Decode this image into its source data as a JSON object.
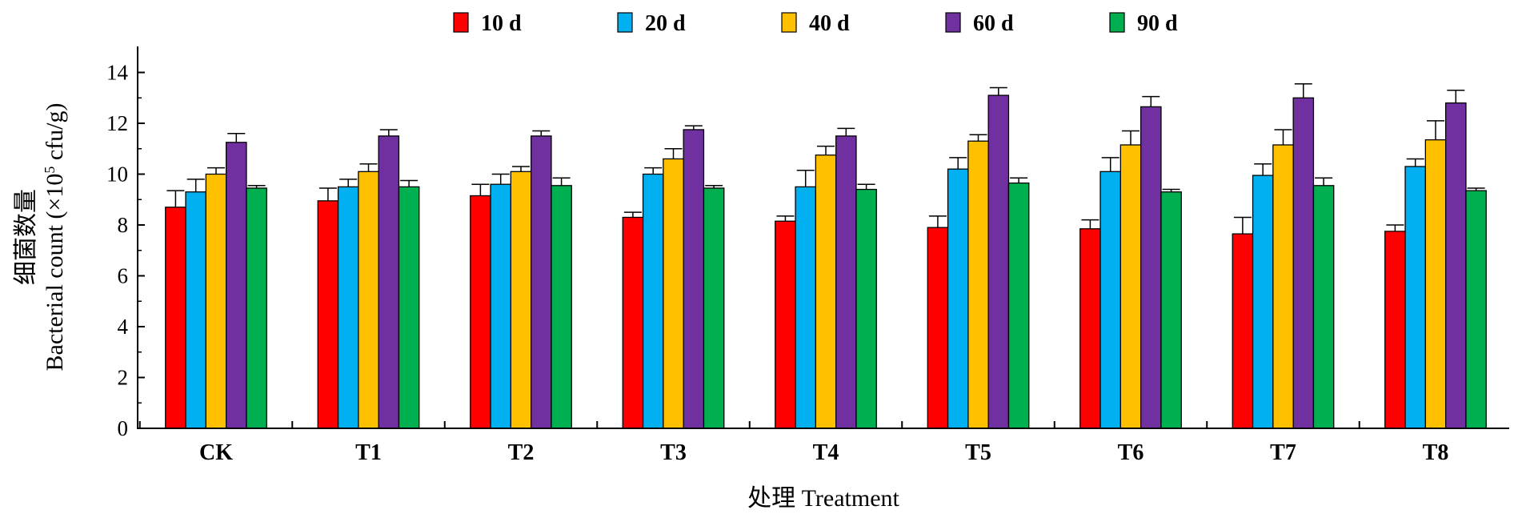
{
  "chart_data": {
    "type": "bar",
    "title": "",
    "xlabel": "处理 Treatment",
    "ylabel_line1": "细菌数量",
    "ylabel_line2_prefix": "Bacterial count (×10",
    "ylabel_line2_sup": "5",
    "ylabel_line2_suffix": " cfu/g)",
    "ylim": [
      0,
      15
    ],
    "yticks": [
      0,
      2,
      4,
      6,
      8,
      10,
      12,
      14
    ],
    "grid": false,
    "legend_position": "top",
    "categories": [
      "CK",
      "T1",
      "T2",
      "T3",
      "T4",
      "T5",
      "T6",
      "T7",
      "T8"
    ],
    "series": [
      {
        "name": "10 d",
        "color": "#ff0000",
        "values": [
          8.7,
          8.95,
          9.15,
          8.3,
          8.15,
          7.9,
          7.85,
          7.65,
          7.75
        ],
        "errors": [
          0.65,
          0.5,
          0.45,
          0.2,
          0.2,
          0.45,
          0.35,
          0.65,
          0.25
        ]
      },
      {
        "name": "20 d",
        "color": "#00b0f0",
        "values": [
          9.3,
          9.5,
          9.6,
          10.0,
          9.5,
          10.2,
          10.1,
          9.95,
          10.3
        ],
        "errors": [
          0.5,
          0.3,
          0.4,
          0.25,
          0.65,
          0.45,
          0.55,
          0.45,
          0.3
        ]
      },
      {
        "name": "40 d",
        "color": "#ffc000",
        "values": [
          10.0,
          10.1,
          10.1,
          10.6,
          10.75,
          11.3,
          11.15,
          11.15,
          11.35
        ],
        "errors": [
          0.25,
          0.3,
          0.2,
          0.4,
          0.35,
          0.25,
          0.55,
          0.6,
          0.75
        ]
      },
      {
        "name": "60 d",
        "color": "#7030a0",
        "values": [
          11.25,
          11.5,
          11.5,
          11.75,
          11.5,
          13.1,
          12.65,
          13.0,
          12.8
        ],
        "errors": [
          0.35,
          0.25,
          0.2,
          0.15,
          0.3,
          0.3,
          0.4,
          0.55,
          0.5
        ]
      },
      {
        "name": "90 d",
        "color": "#00b050",
        "values": [
          9.45,
          9.5,
          9.55,
          9.45,
          9.4,
          9.65,
          9.3,
          9.55,
          9.35
        ],
        "errors": [
          0.1,
          0.25,
          0.3,
          0.1,
          0.2,
          0.2,
          0.1,
          0.3,
          0.1
        ]
      }
    ]
  }
}
